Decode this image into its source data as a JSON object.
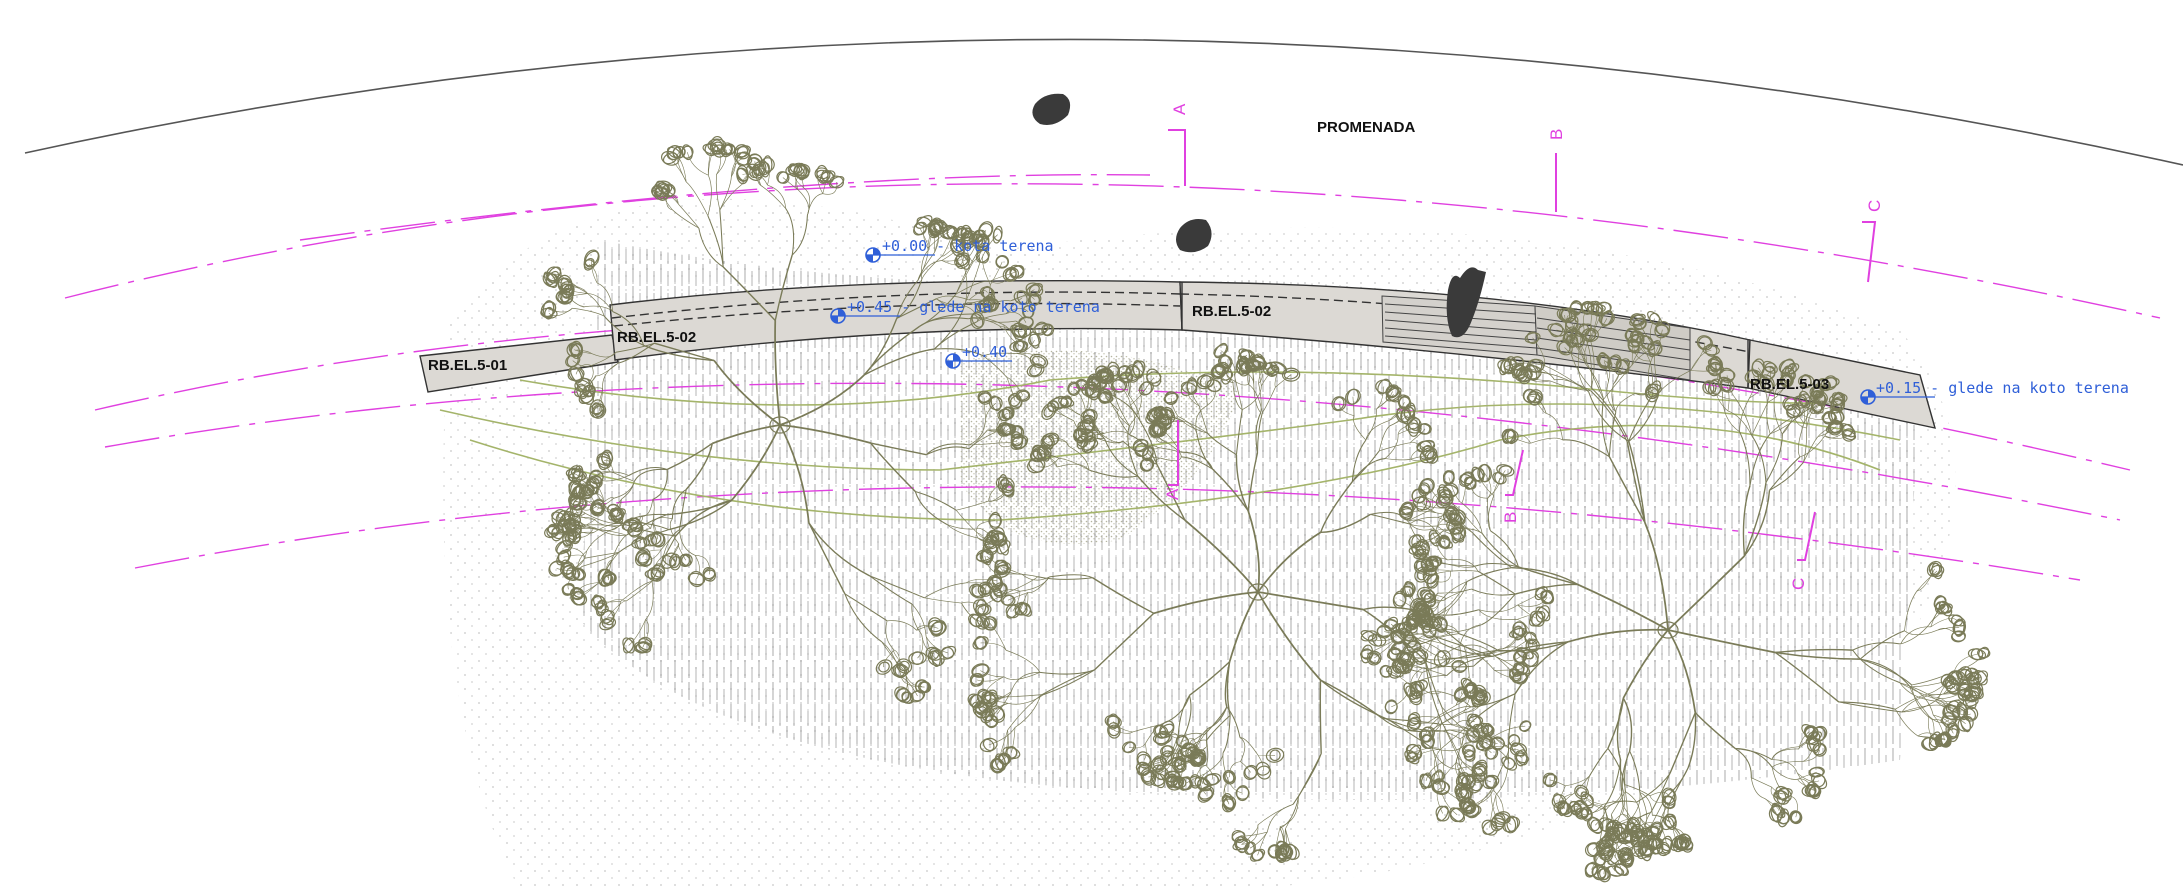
{
  "title": "PROMENADA",
  "colors": {
    "ink": "#333333",
    "section": "#e040e0",
    "level": "#2f5fd8",
    "vegetation": "#7a7b58",
    "contour": "#a4b46a",
    "wall": "#dcd9d4"
  },
  "wall_labels": [
    "RB.EL.5-01",
    "RB.EL.5-02",
    "RB.EL.5-02",
    "RB.EL.5-03"
  ],
  "levels": [
    {
      "text": "+0.00 - kota terena"
    },
    {
      "text": "+0.45 - glede na koto terena"
    },
    {
      "text": "+0.40"
    },
    {
      "text": "+0.15 - glede na koto terena"
    }
  ],
  "sections": [
    "A",
    "B",
    "C",
    "A",
    "B",
    "C"
  ],
  "icons": [
    "tree-canopy-icon",
    "person-silhouette-icon",
    "level-marker-icon",
    "section-marker-icon"
  ]
}
